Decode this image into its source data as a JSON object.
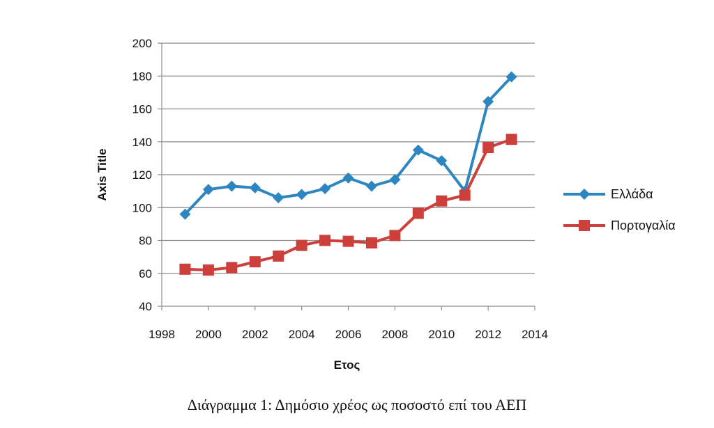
{
  "chart_data": {
    "type": "line",
    "caption": "Διάγραμμα 1: Δημόσιο χρέος ως ποσοστό επί του ΑΕΠ",
    "xlabel": "Ετος",
    "ylabel": "Axis Title",
    "xlim": [
      1998,
      2014
    ],
    "ylim": [
      40,
      200
    ],
    "xticks": [
      1998,
      2000,
      2002,
      2004,
      2006,
      2008,
      2010,
      2012,
      2014
    ],
    "yticks": [
      40,
      60,
      80,
      100,
      120,
      140,
      160,
      180,
      200
    ],
    "grid": "horizontal",
    "legend_position": "right",
    "series": [
      {
        "name": "Ελλάδα",
        "color": "#2e86c1",
        "marker": "diamond",
        "x": [
          1999,
          2000,
          2001,
          2002,
          2003,
          2004,
          2005,
          2006,
          2007,
          2008,
          2009,
          2010,
          2011,
          2012,
          2013
        ],
        "y": [
          96,
          111,
          113,
          112,
          106,
          108,
          111.5,
          118,
          113,
          117,
          135,
          128.5,
          110,
          164.5,
          179.5
        ]
      },
      {
        "name": "Πορτογαλία",
        "color": "#cc3f3b",
        "marker": "square",
        "x": [
          1999,
          2000,
          2001,
          2002,
          2003,
          2004,
          2005,
          2006,
          2007,
          2008,
          2009,
          2010,
          2011,
          2012,
          2013
        ],
        "y": [
          62.5,
          62,
          63.5,
          67,
          70.5,
          77,
          80,
          79.5,
          78.5,
          83,
          96.5,
          104,
          107.5,
          136.5,
          141.5
        ]
      }
    ]
  }
}
